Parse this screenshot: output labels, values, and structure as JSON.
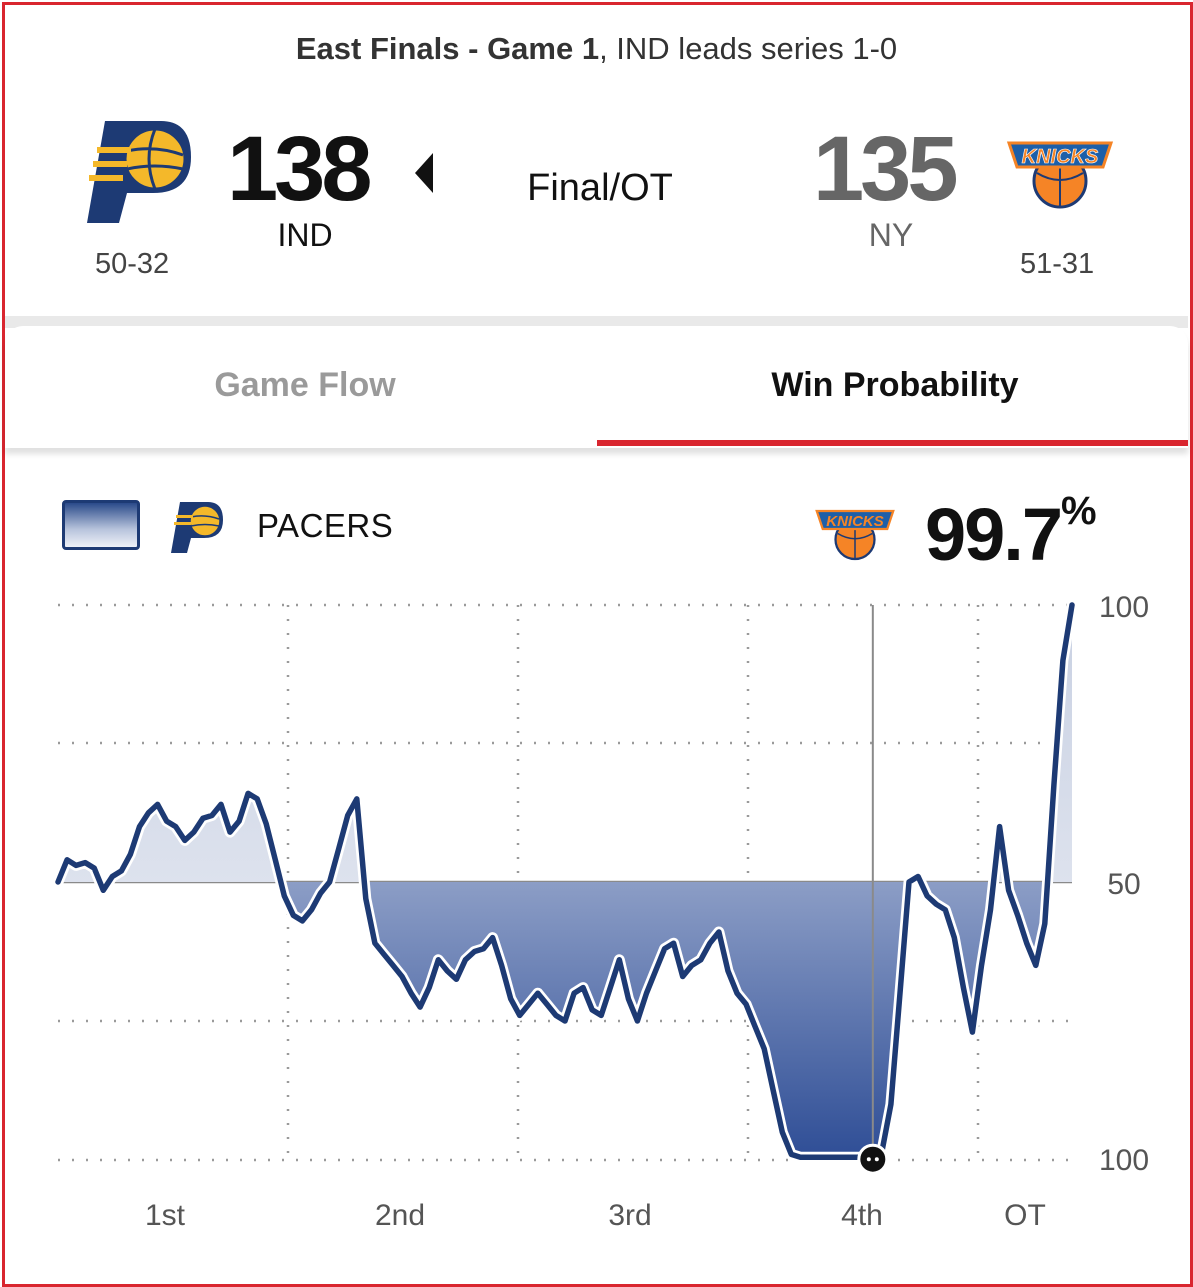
{
  "header": {
    "series_bold": "East Finals - Game 1",
    "series_rest": ", IND leads series 1-0",
    "status": "Final/OT"
  },
  "home": {
    "abbr": "IND",
    "score": "138",
    "record": "50-32",
    "logo_icon": "pacers-logo"
  },
  "away": {
    "abbr": "NY",
    "score": "135",
    "record": "51-31",
    "logo_icon": "knicks-logo"
  },
  "tabs": [
    {
      "label": "Game Flow",
      "active": false
    },
    {
      "label": "Win Probability",
      "active": true
    }
  ],
  "legend": {
    "team": "PACERS",
    "leader_logo": "knicks-logo",
    "probability": "99.7",
    "percent_sign": "%"
  },
  "colors": {
    "accent": "#d9262f",
    "pacers_navy": "#1d3a74",
    "pacers_gold": "#f4b82a",
    "knicks_orange": "#f58426"
  },
  "chart_data": {
    "type": "area",
    "y_tick_labels": [
      "100",
      "50",
      "100"
    ],
    "x_labels": [
      "1st",
      "2nd",
      "3rd",
      "4th",
      "OT"
    ],
    "baseline": 50,
    "ylim": [
      -100,
      100
    ],
    "grid": true,
    "note_values": "signed win probability: positive = IND favored, negative = NY favored",
    "x": [
      0,
      1,
      2,
      3,
      4,
      5,
      6,
      7,
      8,
      9,
      10,
      11,
      12,
      13,
      14,
      15,
      16,
      17,
      18,
      19,
      20,
      21,
      22,
      23,
      24,
      25,
      26,
      27,
      28,
      29,
      30,
      31,
      32,
      33,
      34,
      35,
      36,
      37,
      38,
      39,
      40,
      41,
      42,
      43,
      44,
      45,
      46,
      47,
      48,
      49,
      50,
      51,
      52,
      53,
      54,
      55,
      56,
      57,
      58,
      59,
      60,
      61,
      62,
      63,
      64,
      65,
      66,
      67,
      68,
      69,
      70,
      71,
      72,
      73,
      74,
      75,
      76,
      77,
      78,
      79,
      80,
      81,
      82,
      83,
      84,
      85,
      86,
      87,
      88,
      89,
      90,
      91,
      92,
      93,
      94,
      95,
      96,
      97,
      98,
      99,
      100,
      101,
      102,
      103,
      104,
      105,
      106,
      107,
      108,
      109,
      110,
      111,
      112
    ],
    "values": [
      0,
      8,
      6,
      7,
      5,
      -3,
      2,
      4,
      10,
      20,
      25,
      28,
      22,
      20,
      15,
      18,
      23,
      24,
      28,
      18,
      22,
      32,
      30,
      21,
      8,
      -5,
      -12,
      -14,
      -10,
      -4,
      0,
      12,
      24,
      30,
      -6,
      -22,
      -26,
      -30,
      -34,
      -40,
      -45,
      -38,
      -28,
      -32,
      -35,
      -28,
      -25,
      -24,
      -20,
      -30,
      -42,
      -48,
      -44,
      -40,
      -44,
      -48,
      -50,
      -40,
      -38,
      -46,
      -48,
      -38,
      -28,
      -42,
      -50,
      -40,
      -32,
      -24,
      -22,
      -34,
      -30,
      -28,
      -22,
      -18,
      -32,
      -40,
      -44,
      -52,
      -60,
      -75,
      -90,
      -98,
      -99,
      -99,
      -99,
      -99,
      -99,
      -99,
      -99,
      -99,
      -99,
      -97,
      -80,
      -40,
      0,
      2,
      -5,
      -8,
      -10,
      -20,
      -38,
      -54,
      -30,
      -10,
      20,
      -3,
      -12,
      -22,
      -30,
      -15,
      35,
      80,
      100
    ],
    "marker_index": 90
  }
}
